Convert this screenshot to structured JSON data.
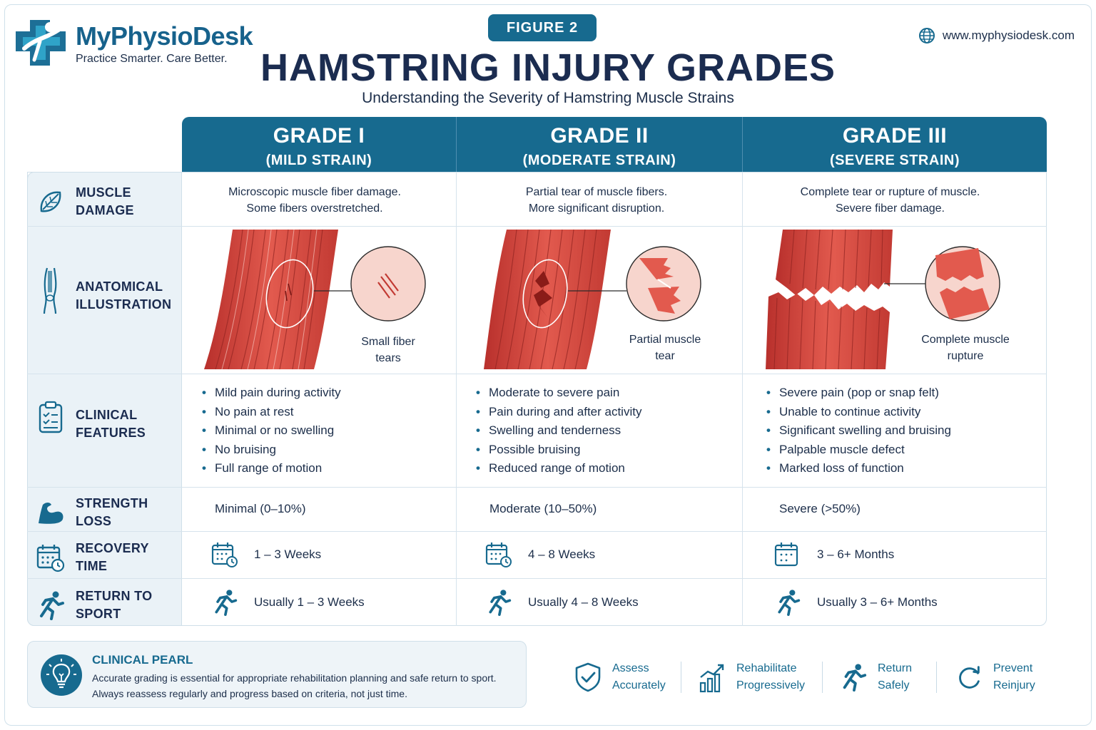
{
  "header": {
    "brand": "MyPhysioDesk",
    "tagline": "Practice Smarter. Care Better.",
    "figure_badge": "FIGURE 2",
    "title": "HAMSTRING INJURY GRADES",
    "subtitle": "Understanding the Severity of Hamstring Muscle Strains",
    "website": "www.myphysiodesk.com"
  },
  "grades": [
    {
      "grade": "GRADE I",
      "strain": "(MILD STRAIN)",
      "damage": [
        "Microscopic muscle fiber damage.",
        "Some fibers overstretched."
      ],
      "illustration_caption": [
        "Small fiber",
        "tears"
      ],
      "features": [
        "Mild pain during activity",
        "No pain at rest",
        "Minimal or no swelling",
        "No bruising",
        "Full range of motion"
      ],
      "strength_loss": "Minimal (0–10%)",
      "recovery": "1 – 3 Weeks",
      "return": "Usually 1 – 3 Weeks"
    },
    {
      "grade": "GRADE II",
      "strain": "(MODERATE STRAIN)",
      "damage": [
        "Partial tear of muscle fibers.",
        "More significant disruption."
      ],
      "illustration_caption": [
        "Partial muscle",
        "tear"
      ],
      "features": [
        "Moderate to severe pain",
        "Pain during and after activity",
        "Swelling and tenderness",
        "Possible bruising",
        "Reduced range of motion"
      ],
      "strength_loss": "Moderate (10–50%)",
      "recovery": "4 – 8 Weeks",
      "return": "Usually 4 – 8 Weeks"
    },
    {
      "grade": "GRADE III",
      "strain": "(SEVERE STRAIN)",
      "damage": [
        "Complete tear or rupture of muscle.",
        "Severe fiber damage."
      ],
      "illustration_caption": [
        "Complete muscle",
        "rupture"
      ],
      "features": [
        "Severe pain (pop or snap felt)",
        "Unable to continue activity",
        "Significant swelling and bruising",
        "Palpable muscle defect",
        "Marked loss of function"
      ],
      "strength_loss": "Severe (>50%)",
      "recovery": "3 – 6+ Months",
      "return": "Usually 3 – 6+ Months"
    }
  ],
  "row_labels": {
    "damage": "MUSCLE DAMAGE",
    "anatomical": [
      "ANATOMICAL",
      "ILLUSTRATION"
    ],
    "clinical": [
      "CLINICAL",
      "FEATURES"
    ],
    "strength": "STRENGTH LOSS",
    "recovery": "RECOVERY TIME",
    "return": "RETURN TO SPORT"
  },
  "pearl": {
    "title": "CLINICAL PEARL",
    "lines": [
      "Accurate grading is essential for appropriate rehabilitation planning and safe return to sport.",
      "Always reassess regularly and progress based on criteria, not just time."
    ]
  },
  "actions": [
    {
      "l1": "Assess",
      "l2": "Accurately",
      "icon": "shield-check-icon"
    },
    {
      "l1": "Rehabilitate",
      "l2": "Progressively",
      "icon": "growth-chart-icon"
    },
    {
      "l1": "Return",
      "l2": "Safely",
      "icon": "runner-icon"
    },
    {
      "l1": "Prevent",
      "l2": "Reinjury",
      "icon": "refresh-icon"
    }
  ],
  "colors": {
    "primary": "#176a8f",
    "dark_navy": "#1b2c50",
    "muscle": "#d9473f",
    "label_bg": "#eaf2f7"
  }
}
